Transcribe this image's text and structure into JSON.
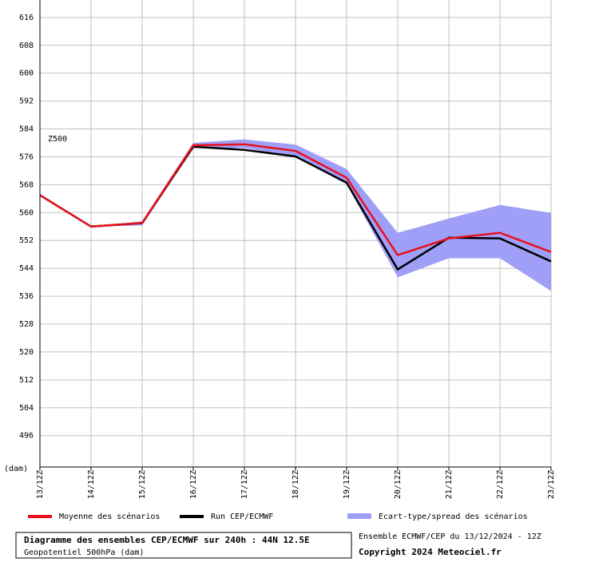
{
  "chart_data": {
    "type": "line",
    "annotation": "Z500",
    "y_unit": "(dam)",
    "categories": [
      "13/12Z",
      "14/12Z",
      "15/12Z",
      "16/12Z",
      "17/12Z",
      "18/12Z",
      "19/12Z",
      "20/12Z",
      "21/12Z",
      "22/12Z",
      "23/12Z"
    ],
    "ylim": [
      487,
      621
    ],
    "yticks": [
      496,
      504,
      512,
      520,
      528,
      536,
      544,
      552,
      560,
      568,
      576,
      584,
      592,
      600,
      608,
      616
    ],
    "grid": true,
    "series": [
      {
        "name": "Moyenne des scénarios",
        "color": "#e8101c",
        "values": [
          565,
          556,
          557,
          579.3,
          579.6,
          577.7,
          570,
          547.8,
          552.6,
          554.2,
          548.7
        ]
      },
      {
        "name": "Run CEP/ECMWF",
        "color": "#000000",
        "values": [
          565,
          556,
          557,
          578.9,
          578,
          576.1,
          568.6,
          543.7,
          552.8,
          552.6,
          546
        ]
      },
      {
        "name": "Ecart-type/spread des scénarios",
        "color": "#9f9ff8",
        "type": "band",
        "low": [
          565,
          556,
          556.3,
          578.5,
          578.5,
          576,
          568.1,
          541.4,
          546.9,
          546.9,
          537.5
        ],
        "high": [
          565,
          556,
          557.5,
          580,
          581,
          579.5,
          572.5,
          554.2,
          558.3,
          562.2,
          559.9
        ]
      }
    ],
    "footer": {
      "title": "Diagramme des ensembles CEP/ECMWF sur 240h : 44N 12.5E",
      "subtitle": "Geopotentiel 500hPa (dam)",
      "run": "Ensemble ECMWF/CEP du 13/12/2024 - 12Z",
      "copyright": "Copyright 2024 Meteociel.fr"
    }
  }
}
